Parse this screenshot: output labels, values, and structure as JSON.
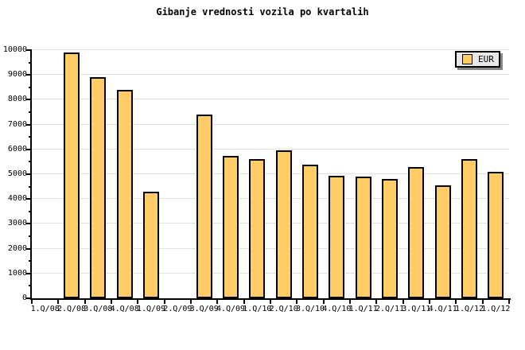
{
  "title": "Gibanje vrednosti vozila po kvartalih",
  "legend": {
    "label": "EUR"
  },
  "colors": {
    "background": "#FFFFFF",
    "bar_fill": "#FFCC66",
    "bar_border": "#000000",
    "grid": "#E0E0E0",
    "axis": "#000000",
    "legend_bg": "#E8E8E8",
    "legend_shadow": "#888888",
    "text": "#000000"
  },
  "chart_data": {
    "type": "bar",
    "title": "Gibanje vrednosti vozila po kvartalih",
    "xlabel": "",
    "ylabel": "",
    "series_name": "EUR",
    "categories": [
      "1.Q/08",
      "2.Q/08",
      "3.Q/08",
      "4.Q/08",
      "1.Q/09",
      "2.Q/09",
      "3.Q/09",
      "4.Q/09",
      "1.Q/10",
      "2.Q/10",
      "3.Q/10",
      "4.Q/10",
      "1.Q/11",
      "2.Q/11",
      "3.Q/11",
      "4.Q/11",
      "1.Q/12",
      "1.Q/12"
    ],
    "values": [
      null,
      9900,
      8900,
      8400,
      4300,
      null,
      7400,
      5750,
      5600,
      5950,
      5400,
      4950,
      4890,
      4820,
      5300,
      4550,
      5620,
      5100
    ],
    "ylim": [
      0,
      10000
    ],
    "yticks": [
      0,
      1000,
      2000,
      3000,
      4000,
      5000,
      6000,
      7000,
      8000,
      9000,
      10000
    ],
    "y_minor_step": 500,
    "grid": true,
    "legend_position": "top-right"
  }
}
